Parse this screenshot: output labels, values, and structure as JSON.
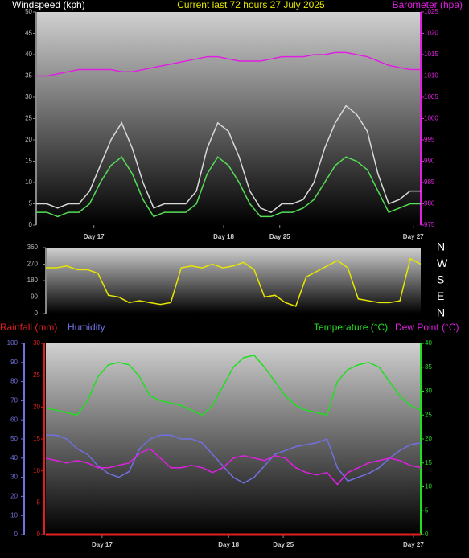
{
  "chart_data": [
    {
      "type": "line",
      "title": "Current last 72 hours 27 July 2025",
      "y_label": "Windspeed (kph)",
      "y2_label": "Barometer (hpa)",
      "x": [
        0,
        2,
        4,
        6,
        8,
        10,
        12,
        14,
        16,
        18,
        20,
        22,
        24,
        26,
        28,
        30,
        32,
        34,
        36,
        38,
        40,
        42,
        44,
        46,
        48,
        50,
        52,
        54,
        56,
        58,
        60,
        62,
        64,
        66,
        68,
        70,
        72
      ],
      "xlim": [
        0,
        72
      ],
      "xticks": [
        {
          "value": 10.8,
          "label": "Day 17"
        },
        {
          "value": 35.1,
          "label": "Day 18"
        },
        {
          "value": 45.6,
          "label": "Day 25"
        },
        {
          "value": 70.6,
          "label": "Day 27"
        }
      ],
      "ylim": [
        0,
        50
      ],
      "yticks": [
        0,
        5,
        10,
        15,
        20,
        25,
        30,
        35,
        40,
        45,
        50
      ],
      "y2lim": [
        975,
        1025
      ],
      "y2ticks": [
        975,
        980,
        985,
        990,
        995,
        1000,
        1005,
        1010,
        1015,
        1020,
        1025
      ],
      "series": [
        {
          "color": "#d8d8d8",
          "values": [
            5,
            5,
            4,
            5,
            5,
            8,
            14,
            20,
            24,
            18,
            10,
            4,
            5,
            5,
            5,
            8,
            18,
            24,
            22,
            16,
            8,
            4,
            3,
            5,
            5,
            6,
            10,
            18,
            24,
            28,
            26,
            22,
            12,
            5,
            6,
            8,
            8
          ]
        },
        {
          "color": "#55dd55",
          "values": [
            3,
            3,
            2,
            3,
            3,
            5,
            10,
            14,
            16,
            12,
            6,
            2,
            3,
            3,
            3,
            5,
            12,
            16,
            14,
            10,
            5,
            2,
            2,
            3,
            3,
            4,
            6,
            10,
            14,
            16,
            15,
            13,
            8,
            3,
            4,
            5,
            5
          ]
        },
        {
          "color": "#e020e0",
          "axis": "y2",
          "values": [
            1010,
            1010,
            1010.5,
            1011,
            1011.5,
            1011.5,
            1011.5,
            1011.5,
            1011,
            1011,
            1011.5,
            1012,
            1012.5,
            1013,
            1013.5,
            1014,
            1014.5,
            1014.5,
            1014,
            1013.5,
            1013.5,
            1013.5,
            1014,
            1014.5,
            1014.5,
            1014.5,
            1015,
            1015,
            1015.5,
            1015.5,
            1015,
            1014.5,
            1013.5,
            1012.5,
            1012,
            1011.5,
            1011.5
          ]
        }
      ]
    },
    {
      "type": "line",
      "x": [
        0,
        2,
        4,
        6,
        8,
        10,
        12,
        14,
        16,
        18,
        20,
        22,
        24,
        26,
        28,
        30,
        32,
        34,
        36,
        38,
        40,
        42,
        44,
        46,
        48,
        50,
        52,
        54,
        56,
        58,
        60,
        62,
        64,
        66,
        68,
        70,
        72
      ],
      "xlim": [
        0,
        72
      ],
      "ylim": [
        0,
        360
      ],
      "yticks": [
        0,
        90,
        180,
        270,
        360
      ],
      "y2lim": [
        0,
        360
      ],
      "y2ticks": [
        {
          "value": 0,
          "label": "N"
        },
        {
          "value": 90,
          "label": "E"
        },
        {
          "value": 180,
          "label": "S"
        },
        {
          "value": 270,
          "label": "W"
        },
        {
          "value": 360,
          "label": "N"
        }
      ],
      "series": [
        {
          "color": "#e6e600",
          "values": [
            250,
            250,
            260,
            240,
            240,
            220,
            100,
            90,
            60,
            70,
            60,
            50,
            60,
            250,
            260,
            250,
            270,
            250,
            260,
            280,
            240,
            90,
            100,
            60,
            40,
            200,
            230,
            260,
            290,
            250,
            80,
            70,
            60,
            60,
            70,
            300,
            270
          ]
        }
      ]
    },
    {
      "type": "line",
      "x": [
        0,
        2,
        4,
        6,
        8,
        10,
        12,
        14,
        16,
        18,
        20,
        22,
        24,
        26,
        28,
        30,
        32,
        34,
        36,
        38,
        40,
        42,
        44,
        46,
        48,
        50,
        52,
        54,
        56,
        58,
        60,
        62,
        64,
        66,
        68,
        70,
        72
      ],
      "xlim": [
        0,
        72
      ],
      "xticks": [
        {
          "value": 10.8,
          "label": "Day 17"
        },
        {
          "value": 35.1,
          "label": "Day 18"
        },
        {
          "value": 45.6,
          "label": "Day 25"
        },
        {
          "value": 70.6,
          "label": "Day 27"
        }
      ],
      "ylim": [
        0,
        100
      ],
      "yticks": [
        0,
        10,
        20,
        30,
        40,
        50,
        60,
        70,
        80,
        90,
        100
      ],
      "y2lim": [
        0,
        40
      ],
      "y2ticks": [
        0,
        5,
        10,
        15,
        20,
        25,
        30,
        35,
        40
      ],
      "y3lim": [
        0,
        30
      ],
      "y3ticks": [
        0,
        5,
        10,
        15,
        20,
        25,
        30
      ],
      "series": [
        {
          "name": "Rainfall (mm)",
          "color": "#e02020",
          "axis": "y3",
          "values": [
            0,
            0,
            0,
            0,
            0,
            0,
            0,
            0,
            0,
            0,
            0,
            0,
            0,
            0,
            0,
            0,
            0,
            0,
            0,
            0,
            0,
            0,
            0,
            0,
            0,
            0,
            0,
            0,
            0,
            0,
            0,
            0,
            0,
            0,
            0,
            0,
            0
          ]
        },
        {
          "name": "Humidity",
          "color": "#7070e0",
          "values": [
            52,
            52,
            50,
            45,
            42,
            36,
            32,
            30,
            33,
            45,
            50,
            52,
            52,
            50,
            50,
            48,
            42,
            36,
            30,
            27,
            30,
            36,
            42,
            44,
            46,
            47,
            48,
            50,
            35,
            28,
            30,
            32,
            35,
            40,
            44,
            47,
            48
          ]
        },
        {
          "name": "Temperature (°C)",
          "color": "#22dd22",
          "axis": "y2",
          "values": [
            26.5,
            26,
            25.5,
            25,
            28,
            33,
            35.5,
            36,
            35.5,
            33,
            29,
            28,
            27.5,
            27,
            26,
            25,
            27,
            31,
            35,
            37,
            37.5,
            35,
            32,
            29,
            27,
            26,
            25.5,
            25,
            32,
            34.5,
            35.5,
            36,
            35,
            32,
            29,
            27,
            26
          ]
        },
        {
          "name": "Dew Point (°C)",
          "color": "#e020e0",
          "axis": "y2",
          "values": [
            16,
            15.5,
            15,
            15.5,
            15,
            14,
            14,
            14.5,
            15,
            17,
            18,
            16,
            14,
            14,
            14.5,
            14,
            13,
            14,
            16,
            16.5,
            16,
            15.5,
            16.5,
            16,
            14,
            13,
            12.5,
            13,
            10.5,
            13,
            14,
            15,
            15.5,
            16,
            15.5,
            14.5,
            14
          ]
        }
      ]
    }
  ]
}
